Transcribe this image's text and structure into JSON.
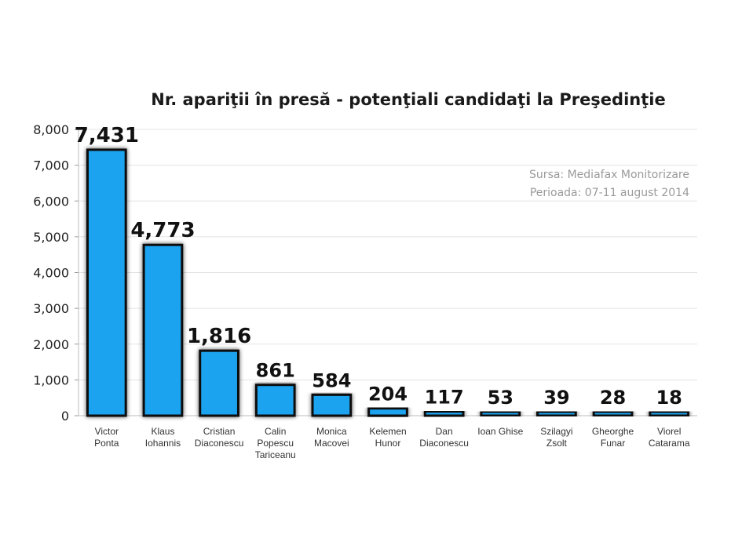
{
  "chart_data": {
    "type": "bar",
    "title": "Nr. apariţii în presă  - potenţiali candidaţi la Preşedinţie",
    "categories": [
      [
        "Victor",
        "Ponta"
      ],
      [
        "Klaus",
        "Iohannis"
      ],
      [
        "Cristian",
        "Diaconescu"
      ],
      [
        "Calin",
        "Popescu",
        "Tariceanu"
      ],
      [
        "Monica",
        "Macovei"
      ],
      [
        "Kelemen",
        "Hunor"
      ],
      [
        "Dan",
        "Diaconescu"
      ],
      [
        "Ioan Ghise"
      ],
      [
        "Szilagyi",
        "Zsolt"
      ],
      [
        "Gheorghe",
        "Funar"
      ],
      [
        "Viorel",
        "Catarama"
      ]
    ],
    "values": [
      7431,
      4773,
      1816,
      861,
      584,
      204,
      117,
      53,
      39,
      28,
      18
    ],
    "value_labels": [
      "7,431",
      "4,773",
      "1,816",
      "861",
      "584",
      "204",
      "117",
      "53",
      "39",
      "28",
      "18"
    ],
    "y_ticks": [
      "0",
      "1,000",
      "2,000",
      "3,000",
      "4,000",
      "5,000",
      "6,000",
      "7,000",
      "8,000"
    ],
    "ylim": [
      0,
      8000
    ],
    "xlabel": "",
    "ylabel": "",
    "grid": true,
    "bar_color": "#1aa3f0",
    "bar_outline_color": "#111111"
  },
  "annotation": {
    "line1": "Sursa: Mediafax Monitorizare",
    "line2": "Perioada: 07-11 august 2014"
  }
}
